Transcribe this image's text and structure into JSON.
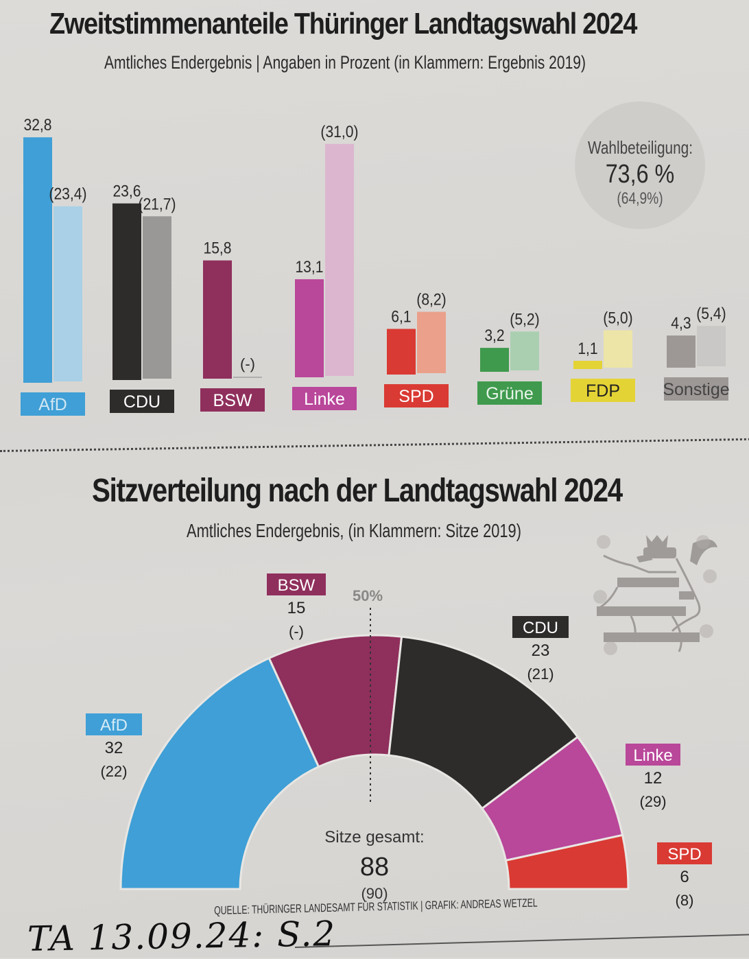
{
  "chart_data": [
    {
      "type": "bar",
      "title": "Zweitstimmenanteile Thüringer Landtagswahl 2024",
      "subtitle": "Amtliches Endergebnis | Angaben in Prozent (in Klammern: Ergebnis 2019)",
      "categories": [
        "AfD",
        "CDU",
        "BSW",
        "Linke",
        "SPD",
        "Grüne",
        "FDP",
        "Sonstige"
      ],
      "series": [
        {
          "name": "2024",
          "values": [
            32.8,
            23.6,
            15.8,
            13.1,
            6.1,
            3.2,
            1.1,
            4.3
          ],
          "labels": [
            "32,8",
            "23,6",
            "15,8",
            "13,1",
            "6,1",
            "3,2",
            "1,1",
            "4,3"
          ]
        },
        {
          "name": "2019",
          "values": [
            23.4,
            21.7,
            null,
            31.0,
            8.2,
            5.2,
            5.0,
            5.4
          ],
          "labels": [
            "(23,4)",
            "(21,7)",
            "(-)",
            "(31,0)",
            "(8,2)",
            "(5,2)",
            "(5,0)",
            "(5,4)"
          ]
        }
      ],
      "colors": {
        "AfD": [
          "#3f9fd6",
          "#a9d0e6"
        ],
        "CDU": [
          "#2e2b2b",
          "#9a9896"
        ],
        "BSW": [
          "#8f2f5c",
          "#c9a3b6"
        ],
        "Linke": [
          "#b9479a",
          "#dcb6cf"
        ],
        "SPD": [
          "#d93a33",
          "#eaa08b"
        ],
        "Grüne": [
          "#3f9a4d",
          "#aacfb0"
        ],
        "FDP": [
          "#e4d335",
          "#ece5a7"
        ],
        "Sonstige": [
          "#9d9896",
          "#cac8c6"
        ]
      },
      "label_text_colors": {
        "AfD": "#cfe6f3",
        "CDU": "#ffffff",
        "BSW": "#ffffff",
        "Linke": "#ffffff",
        "SPD": "#ffffff",
        "Grüne": "#e8f4ea",
        "FDP": "#222222",
        "Sonstige": "#444444"
      },
      "ylim": [
        0,
        33
      ],
      "grid": false,
      "xlabel": "",
      "ylabel": ""
    },
    {
      "type": "pie",
      "subtype": "semicircle",
      "title": "Sitzverteilung nach der Landtagswahl 2024",
      "subtitle": "Amtliches Endergebnis, (in Klammern: Sitze 2019)",
      "categories": [
        "AfD",
        "BSW",
        "CDU",
        "Linke",
        "SPD"
      ],
      "values": [
        32,
        15,
        23,
        12,
        6
      ],
      "values_2019": [
        "(22)",
        "(-)",
        "(21)",
        "(29)",
        "(8)"
      ],
      "colors": [
        "#3f9fd6",
        "#8f2f5c",
        "#2e2b2b",
        "#b9479a",
        "#d93a33"
      ],
      "marker_label": "50%",
      "center_label": "Sitze gesamt:",
      "total": "88",
      "total_2019": "(90)"
    }
  ],
  "turnout": {
    "label": "Wahlbeteiligung:",
    "value": "73,6 %",
    "previous": "(64,9%)"
  },
  "source": "QUELLE: THÜRINGER LANDESAMT FÜR STATISTIK | GRAFIK: ANDREAS WETZEL",
  "handwritten_note": "TA 13.09.24: S.2"
}
